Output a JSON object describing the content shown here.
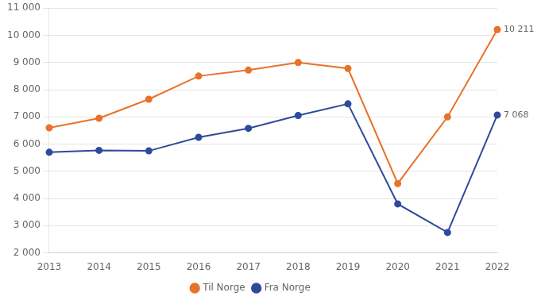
{
  "chart_data": {
    "type": "line",
    "categories": [
      "2013",
      "2014",
      "2015",
      "2016",
      "2017",
      "2018",
      "2019",
      "2020",
      "2021",
      "2022"
    ],
    "series": [
      {
        "name": "Til Norge",
        "color": "#E8722A",
        "marker": "circle",
        "values": [
          6600,
          6950,
          7650,
          8500,
          8720,
          9000,
          8780,
          4550,
          7000,
          10211
        ]
      },
      {
        "name": "Fra Norge",
        "color": "#2E4A9C",
        "marker": "circle",
        "values": [
          5700,
          5770,
          5750,
          6250,
          6580,
          7050,
          7480,
          3800,
          2750,
          7068
        ]
      }
    ],
    "annotations": [
      {
        "text": "10 211",
        "x": "2022",
        "y": 10211
      },
      {
        "text": "7 068",
        "x": "2022",
        "y": 7068
      }
    ],
    "ylim": [
      2000,
      11000
    ],
    "yticks": [
      {
        "value": 2000,
        "label": "2 000"
      },
      {
        "value": 3000,
        "label": "3 000"
      },
      {
        "value": 4000,
        "label": "4 000"
      },
      {
        "value": 5000,
        "label": "5 000"
      },
      {
        "value": 6000,
        "label": "6 000"
      },
      {
        "value": 7000,
        "label": "7 000"
      },
      {
        "value": 8000,
        "label": "8 000"
      },
      {
        "value": 9000,
        "label": "9 000"
      },
      {
        "value": 10000,
        "label": "10 000"
      },
      {
        "value": 11000,
        "label": "11 000"
      }
    ],
    "grid": "y",
    "legend": "bottom"
  }
}
